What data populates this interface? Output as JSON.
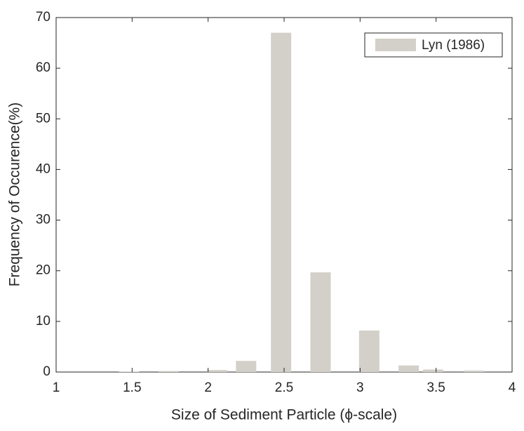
{
  "chart_data": {
    "type": "bar",
    "xlabel": "Size of Sediment Particle (ϕ-scale)",
    "ylabel": "Frequency of Occurence(%)",
    "x": [
      1.48,
      1.74,
      2.06,
      2.25,
      2.48,
      2.74,
      3.06,
      3.32,
      3.48,
      3.75
    ],
    "series": [
      {
        "name": "Lyn (1986)",
        "color": "#d3d0c9",
        "values": [
          0.1,
          0.2,
          0.4,
          2.2,
          67,
          19.7,
          8.2,
          1.3,
          0.5,
          0.3
        ]
      }
    ],
    "xlim": [
      1,
      4
    ],
    "xticks": [
      1,
      1.5,
      2,
      2.5,
      3,
      3.5,
      4
    ],
    "ylim": [
      0,
      70
    ],
    "yticks": [
      0,
      10,
      20,
      30,
      40,
      50,
      60,
      70
    ],
    "legend": "top-right"
  }
}
